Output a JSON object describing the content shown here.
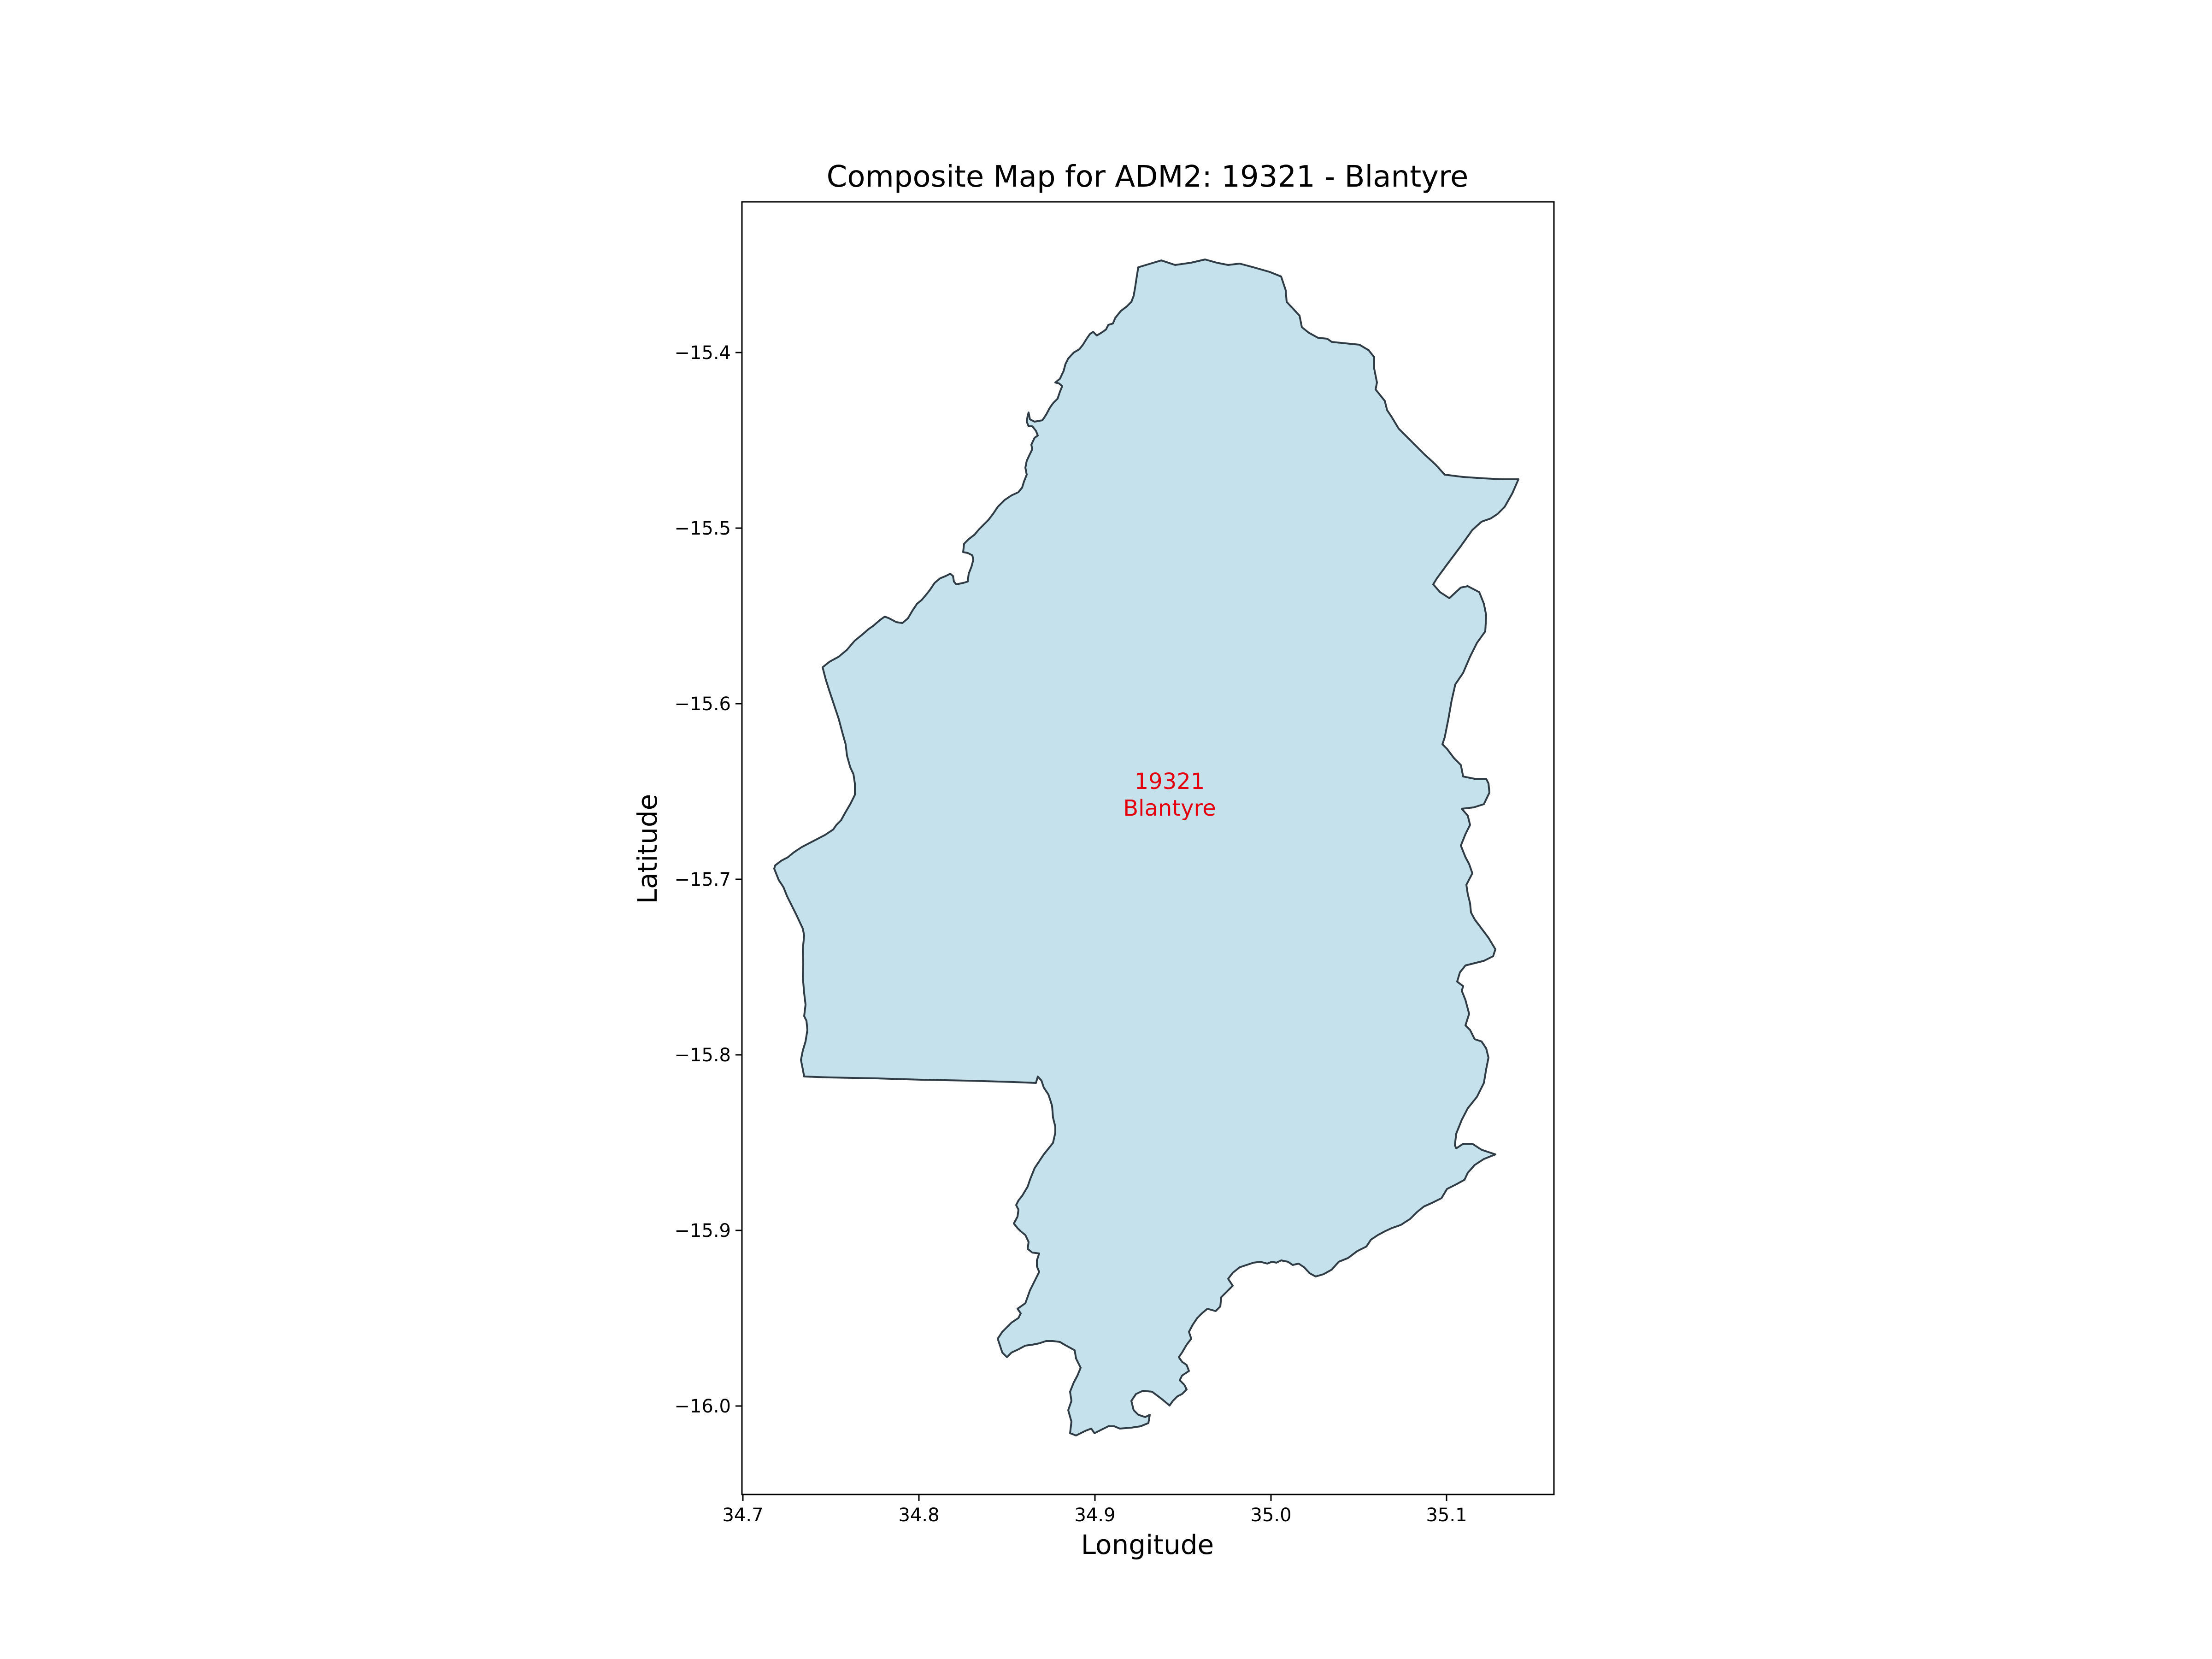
{
  "map": {
    "title": "Composite Map for ADM2: 19321 - Blantyre",
    "xlabel": "Longitude",
    "ylabel": "Latitude",
    "x_ticks": [
      "34.7",
      "34.8",
      "34.9",
      "35.0",
      "35.1"
    ],
    "y_ticks": [
      "−15.4",
      "−15.5",
      "−15.6",
      "−15.7",
      "−15.8",
      "−15.9",
      "−16.0"
    ],
    "region": {
      "code": "19321",
      "name": "Blantyre",
      "fill_color": "#c5e2ec",
      "outline_color": "#2f3b45",
      "label_color": "#e3000f"
    }
  }
}
